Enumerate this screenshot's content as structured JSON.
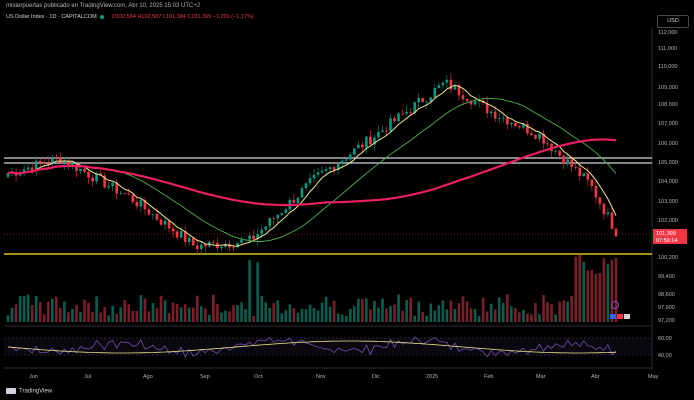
{
  "header": {
    "publisher": "misterpuertas publicado en TradingView.com, Abr 10, 2025 15:03 UTC+2",
    "symbol": "US Dollar Index · 1D · CAPITALCOM",
    "ohlc": "O102,564 H102,587 L101,384 C101,399 −1,200 (−1,17%)"
  },
  "currency_label": "USD",
  "logo_text": "TradingView",
  "price_badge": {
    "price": "101,399",
    "countdown": "07:56:14",
    "color": "#f23645"
  },
  "colors": {
    "up": "#089981",
    "down": "#f23645",
    "ma_fast": "#f0e68c",
    "ma_mid": "#4caf50",
    "ma_slow": "#e91e63",
    "hline_yellow": "#ffeb3b",
    "hline_white": "#d1d4dc",
    "rsi_line": "#7e57c2",
    "rsi_ma": "#f0e68c"
  },
  "chart_data": {
    "type": "candlestick",
    "y_ticks": [
      "112,000",
      "111,000",
      "110,000",
      "109,000",
      "108,000",
      "107,000",
      "106,000",
      "105,000",
      "104,000",
      "103,000",
      "102,000",
      "100,200",
      "99,400",
      "98,600",
      "97,900",
      "97,200"
    ],
    "ylim": [
      97.2,
      112.0
    ],
    "x_ticks": [
      "Jun",
      "Jul",
      "Ago",
      "Sep",
      "Oct",
      "Nov",
      "Dic",
      "2025",
      "Feb",
      "Mar",
      "Abr",
      "May"
    ],
    "horizontal_levels": [
      {
        "value": 105.2,
        "color": "white"
      },
      {
        "value": 104.9,
        "color": "white"
      },
      {
        "value": 100.2,
        "color": "yellow"
      }
    ],
    "close_anchors": [
      {
        "month": "Jun",
        "close": 104.5
      },
      {
        "month": "Jul",
        "close": 105.3
      },
      {
        "month": "Ago",
        "close": 103.2
      },
      {
        "month": "Sep",
        "close": 100.6
      },
      {
        "month": "Oct",
        "close": 100.9
      },
      {
        "month": "Nov",
        "close": 104.2
      },
      {
        "month": "Dic",
        "close": 106.3
      },
      {
        "month": "2025",
        "close": 109.3
      },
      {
        "month": "Feb",
        "close": 107.8
      },
      {
        "month": "Mar",
        "close": 106.5
      },
      {
        "month": "Abr",
        "close": 103.9
      },
      {
        "month": "Abr-10",
        "close": 101.4
      }
    ],
    "rsi_ticks": [
      "60,00",
      "40,00"
    ],
    "volume_note": "volume histogram"
  }
}
